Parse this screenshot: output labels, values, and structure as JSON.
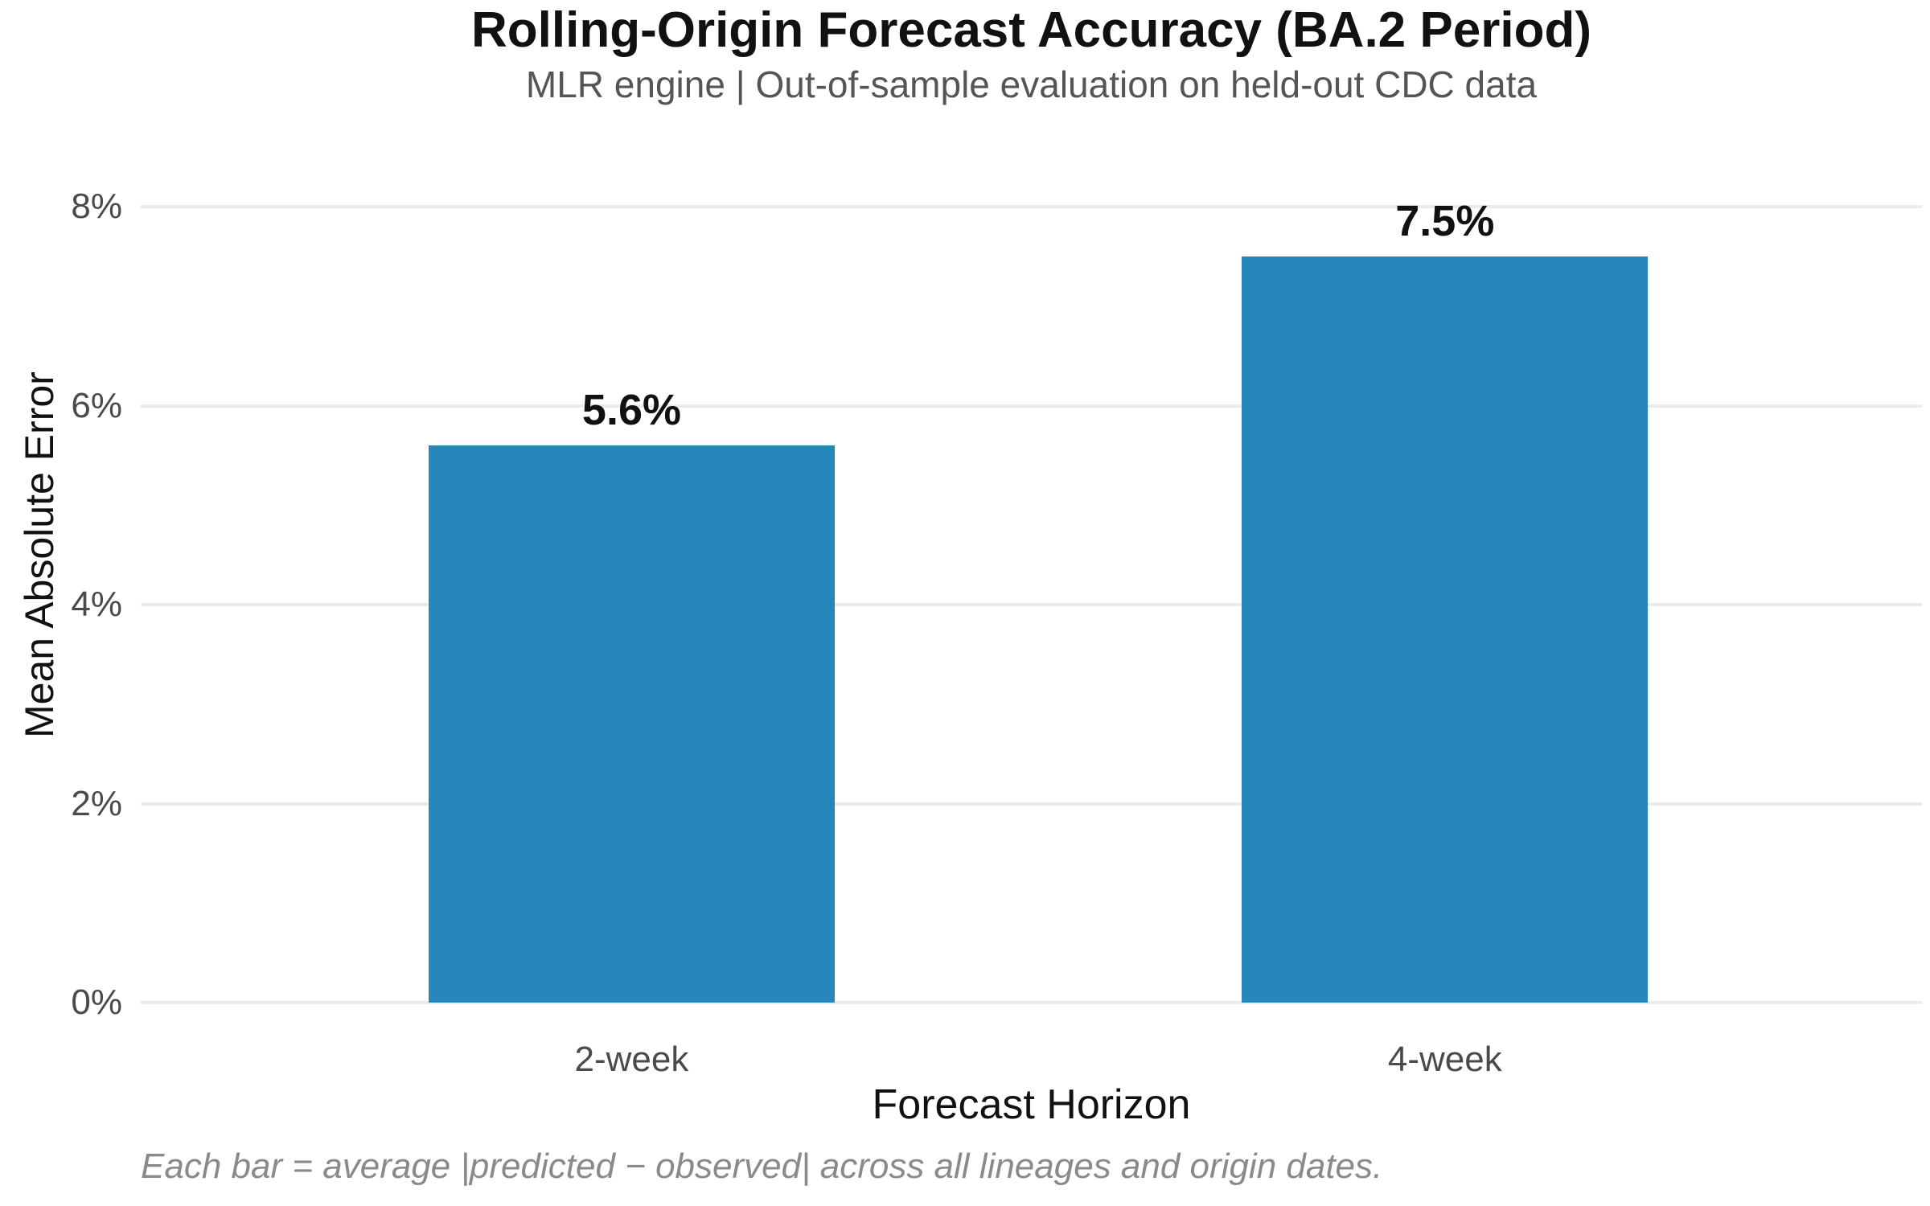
{
  "colors": {
    "bar": "#2787BD",
    "grid": "#EBEBEB",
    "tick_text": "#4A4A4A",
    "title_text": "#111111",
    "subtitle_text": "#555555",
    "footnote_text": "#8A8A8A",
    "background": "#FFFFFF"
  },
  "chart_data": {
    "type": "bar",
    "title": "Rolling-Origin Forecast Accuracy (BA.2 Period)",
    "subtitle": "MLR engine | Out-of-sample evaluation on held-out CDC data",
    "categories": [
      "2-week",
      "4-week"
    ],
    "values": [
      5.6,
      7.5
    ],
    "value_labels": [
      "5.6%",
      "7.5%"
    ],
    "xlabel": "Forecast Horizon",
    "ylabel": "Mean Absolute Error",
    "ylim": [
      0,
      8
    ],
    "yticks": [
      {
        "value": 0,
        "label": "0%"
      },
      {
        "value": 2,
        "label": "2%"
      },
      {
        "value": 4,
        "label": "4%"
      },
      {
        "value": 6,
        "label": "6%"
      },
      {
        "value": 8,
        "label": "8%"
      }
    ],
    "grid": "horizontal-only",
    "legend": "none",
    "annotation": "Each bar = average |predicted − observed| across all lineages and origin dates."
  }
}
